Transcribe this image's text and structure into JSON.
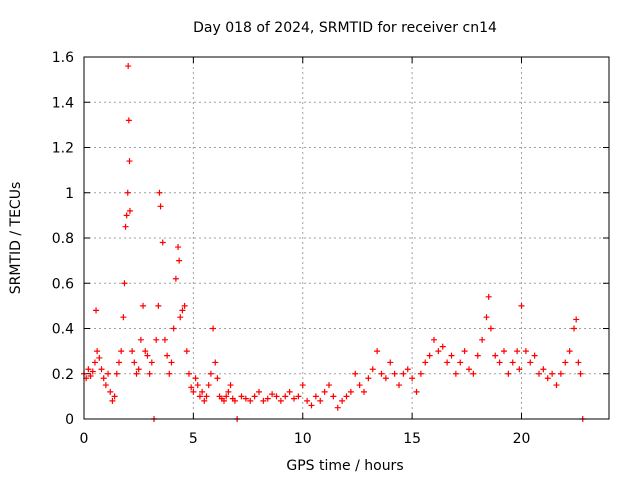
{
  "colors": {
    "series": "#ff0000",
    "axis": "#000000",
    "grid": "#a0a0a0"
  },
  "chart_data": {
    "type": "scatter",
    "title": "Day 018 of 2024, SRMTID for receiver cn14",
    "xlabel": "GPS time / hours",
    "ylabel": "SRMTID / TECUs",
    "xlim": [
      0,
      24
    ],
    "ylim": [
      0,
      1.6
    ],
    "xticks": [
      0,
      5,
      10,
      15,
      20
    ],
    "xtick_labels": [
      "0",
      "5",
      "10",
      "15",
      "20"
    ],
    "yticks": [
      0,
      0.2,
      0.4,
      0.6,
      0.8,
      1.0,
      1.2,
      1.4,
      1.6
    ],
    "ytick_labels": [
      "0",
      "0.2",
      "0.4",
      "0.6",
      "0.8",
      "1",
      "1.2",
      "1.4",
      "1.6"
    ],
    "grid": true,
    "marker": "+",
    "series": [
      {
        "name": "SRMTID",
        "x": [
          0.0,
          0.1,
          0.2,
          0.3,
          0.4,
          0.5,
          0.55,
          0.6,
          0.7,
          0.8,
          0.9,
          1.0,
          1.1,
          1.2,
          1.3,
          1.4,
          1.5,
          1.6,
          1.7,
          1.8,
          1.85,
          1.9,
          1.95,
          2.0,
          2.02,
          2.05,
          2.08,
          2.1,
          2.2,
          2.3,
          2.4,
          2.5,
          2.6,
          2.7,
          2.8,
          2.9,
          3.0,
          3.1,
          3.2,
          3.3,
          3.4,
          3.45,
          3.5,
          3.6,
          3.7,
          3.8,
          3.9,
          4.0,
          4.1,
          4.2,
          4.3,
          4.35,
          4.4,
          4.5,
          4.6,
          4.7,
          4.8,
          4.9,
          5.0,
          5.1,
          5.2,
          5.3,
          5.4,
          5.5,
          5.6,
          5.7,
          5.8,
          5.9,
          6.0,
          6.1,
          6.2,
          6.3,
          6.4,
          6.5,
          6.6,
          6.7,
          6.8,
          6.9,
          7.0,
          7.2,
          7.4,
          7.6,
          7.8,
          8.0,
          8.2,
          8.4,
          8.6,
          8.8,
          9.0,
          9.2,
          9.4,
          9.6,
          9.8,
          10.0,
          10.2,
          10.4,
          10.6,
          10.8,
          11.0,
          11.2,
          11.4,
          11.6,
          11.8,
          12.0,
          12.2,
          12.4,
          12.6,
          12.8,
          13.0,
          13.2,
          13.4,
          13.6,
          13.8,
          14.0,
          14.2,
          14.4,
          14.6,
          14.8,
          15.0,
          15.2,
          15.4,
          15.6,
          15.8,
          16.0,
          16.2,
          16.4,
          16.6,
          16.8,
          17.0,
          17.2,
          17.4,
          17.6,
          17.8,
          18.0,
          18.2,
          18.4,
          18.5,
          18.6,
          18.8,
          19.0,
          19.2,
          19.4,
          19.6,
          19.8,
          19.9,
          20.0,
          20.2,
          20.4,
          20.6,
          20.8,
          21.0,
          21.2,
          21.4,
          21.6,
          21.8,
          22.0,
          22.2,
          22.4,
          22.5,
          22.6,
          22.7,
          22.8
        ],
        "y": [
          0.2,
          0.18,
          0.22,
          0.19,
          0.21,
          0.25,
          0.48,
          0.3,
          0.27,
          0.22,
          0.18,
          0.15,
          0.2,
          0.12,
          0.08,
          0.1,
          0.2,
          0.25,
          0.3,
          0.45,
          0.6,
          0.85,
          0.9,
          1.0,
          1.56,
          1.32,
          1.14,
          0.92,
          0.3,
          0.25,
          0.2,
          0.22,
          0.35,
          0.5,
          0.3,
          0.28,
          0.2,
          0.25,
          0.0,
          0.35,
          0.5,
          1.0,
          0.94,
          0.78,
          0.35,
          0.28,
          0.2,
          0.25,
          0.4,
          0.62,
          0.76,
          0.7,
          0.45,
          0.48,
          0.5,
          0.3,
          0.2,
          0.14,
          0.12,
          0.18,
          0.15,
          0.1,
          0.12,
          0.08,
          0.1,
          0.15,
          0.2,
          0.4,
          0.25,
          0.18,
          0.1,
          0.09,
          0.08,
          0.1,
          0.12,
          0.15,
          0.09,
          0.08,
          0.0,
          0.1,
          0.09,
          0.08,
          0.1,
          0.12,
          0.08,
          0.09,
          0.11,
          0.1,
          0.08,
          0.1,
          0.12,
          0.09,
          0.1,
          0.15,
          0.08,
          0.06,
          0.1,
          0.08,
          0.12,
          0.15,
          0.1,
          0.05,
          0.08,
          0.1,
          0.12,
          0.2,
          0.15,
          0.12,
          0.18,
          0.22,
          0.3,
          0.2,
          0.18,
          0.25,
          0.2,
          0.15,
          0.2,
          0.22,
          0.18,
          0.12,
          0.2,
          0.25,
          0.28,
          0.35,
          0.3,
          0.32,
          0.25,
          0.28,
          0.2,
          0.25,
          0.3,
          0.22,
          0.2,
          0.28,
          0.35,
          0.45,
          0.54,
          0.4,
          0.28,
          0.25,
          0.3,
          0.2,
          0.25,
          0.3,
          0.22,
          0.5,
          0.3,
          0.25,
          0.28,
          0.2,
          0.22,
          0.18,
          0.2,
          0.15,
          0.2,
          0.25,
          0.3,
          0.4,
          0.44,
          0.25,
          0.2,
          0.0
        ]
      }
    ]
  }
}
